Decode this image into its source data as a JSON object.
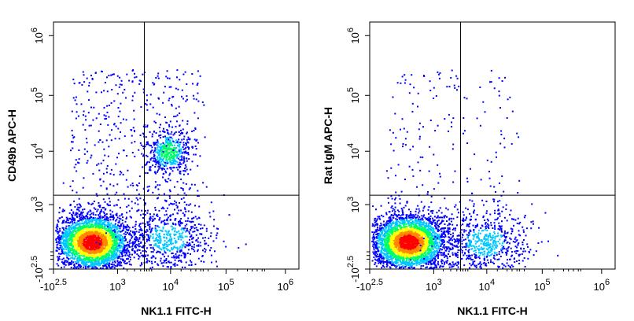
{
  "chart_data": [
    {
      "type": "scatter",
      "subtype": "flow-cytometry-density-dot-plot",
      "xlabel": "NK1.1 FITC-H",
      "ylabel": "CD49b APC-H",
      "x_scale": "biexponential",
      "y_scale": "biexponential",
      "xlim": [
        -316,
        1000000
      ],
      "ylim": [
        -316,
        1000000
      ],
      "x_ticks": [
        {
          "base": "-10",
          "exp": "2.5"
        },
        {
          "base": "10",
          "exp": "3"
        },
        {
          "base": "10",
          "exp": "4"
        },
        {
          "base": "10",
          "exp": "5"
        },
        {
          "base": "10",
          "exp": "6"
        }
      ],
      "y_ticks": [
        {
          "base": "-10",
          "exp": "2.5"
        },
        {
          "base": "10",
          "exp": "3"
        },
        {
          "base": "10",
          "exp": "4"
        },
        {
          "base": "10",
          "exp": "5"
        },
        {
          "base": "10",
          "exp": "6"
        }
      ],
      "quadrant_gate": {
        "x": 3200,
        "y": 1500
      },
      "populations": [
        {
          "x_center": 450,
          "y_center": 210,
          "density": "high"
        },
        {
          "x_center": 9000,
          "y_center": 10000,
          "density": "medium"
        },
        {
          "x_center": 9000,
          "y_center": 300,
          "density": "low"
        }
      ],
      "color_scale": [
        "#0000ff",
        "#00c8ff",
        "#00ff66",
        "#ffff00",
        "#ff8800",
        "#ff0000"
      ],
      "grid": false
    },
    {
      "type": "scatter",
      "subtype": "flow-cytometry-density-dot-plot",
      "xlabel": "NK1.1 FITC-H",
      "ylabel": "Rat IgM APC-H",
      "x_scale": "biexponential",
      "y_scale": "biexponential",
      "xlim": [
        -316,
        1000000
      ],
      "ylim": [
        -316,
        1000000
      ],
      "x_ticks": [
        {
          "base": "-10",
          "exp": "2.5"
        },
        {
          "base": "10",
          "exp": "3"
        },
        {
          "base": "10",
          "exp": "4"
        },
        {
          "base": "10",
          "exp": "5"
        },
        {
          "base": "10",
          "exp": "6"
        }
      ],
      "y_ticks": [
        {
          "base": "-10",
          "exp": "2.5"
        },
        {
          "base": "10",
          "exp": "3"
        },
        {
          "base": "10",
          "exp": "4"
        },
        {
          "base": "10",
          "exp": "5"
        },
        {
          "base": "10",
          "exp": "6"
        }
      ],
      "quadrant_gate": {
        "x": 3200,
        "y": 1500
      },
      "populations": [
        {
          "x_center": 450,
          "y_center": 210,
          "density": "high"
        },
        {
          "x_center": 9000,
          "y_center": 210,
          "density": "low"
        }
      ],
      "color_scale": [
        "#0000ff",
        "#00c8ff",
        "#00ff66",
        "#ffff00",
        "#ff8800",
        "#ff0000"
      ],
      "grid": false
    }
  ]
}
